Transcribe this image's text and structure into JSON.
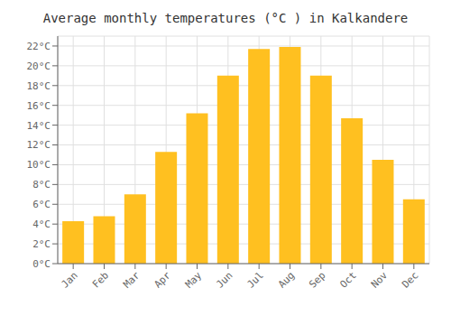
{
  "chart_data": {
    "type": "bar",
    "title": "Average monthly temperatures (°C ) in Kalkandere",
    "categories": [
      "Jan",
      "Feb",
      "Mar",
      "Apr",
      "May",
      "Jun",
      "Jul",
      "Aug",
      "Sep",
      "Oct",
      "Nov",
      "Dec"
    ],
    "values": [
      4.3,
      4.8,
      7.0,
      11.3,
      15.2,
      19.0,
      21.7,
      21.9,
      19.0,
      14.7,
      10.5,
      6.5
    ],
    "color": "#FFC020",
    "ylim": [
      0,
      23
    ],
    "yticks": [
      {
        "value": 0,
        "label": "0°C"
      },
      {
        "value": 2,
        "label": "2°C"
      },
      {
        "value": 4,
        "label": "4°C"
      },
      {
        "value": 6,
        "label": "6°C"
      },
      {
        "value": 8,
        "label": "8°C"
      },
      {
        "value": 10,
        "label": "10°C"
      },
      {
        "value": 12,
        "label": "12°C"
      },
      {
        "value": 14,
        "label": "14°C"
      },
      {
        "value": 16,
        "label": "16°C"
      },
      {
        "value": 18,
        "label": "18°C"
      },
      {
        "value": 20,
        "label": "20°C"
      },
      {
        "value": 22,
        "label": "22°C"
      }
    ],
    "grid": true
  }
}
